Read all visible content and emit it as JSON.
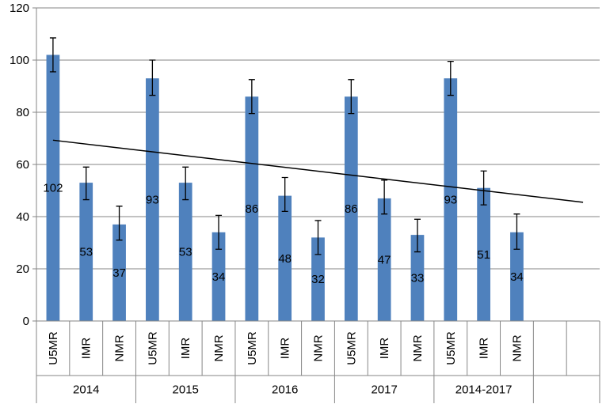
{
  "chart_data": {
    "type": "bar",
    "ylim": [
      0,
      120
    ],
    "yticks": [
      0,
      20,
      40,
      60,
      80,
      100,
      120
    ],
    "grid": "horizontal",
    "groups": [
      {
        "label": "2014",
        "categories": [
          "U5MR",
          "IMR",
          "NMR"
        ]
      },
      {
        "label": "2015",
        "categories": [
          "U5MR",
          "IMR",
          "NMR"
        ]
      },
      {
        "label": "2016",
        "categories": [
          "U5MR",
          "IMR",
          "NMR"
        ]
      },
      {
        "label": "2017",
        "categories": [
          "U5MR",
          "IMR",
          "NMR"
        ]
      },
      {
        "label": "2014-2017",
        "categories": [
          "U5MR",
          "IMR",
          "NMR"
        ]
      }
    ],
    "empty_slots_after": 2,
    "series": [
      {
        "values": [
          102,
          53,
          37,
          93,
          53,
          34,
          86,
          48,
          32,
          86,
          47,
          33,
          93,
          51,
          34
        ],
        "data_labels": [
          "102",
          "53",
          "37",
          "93",
          "53",
          "34",
          "86",
          "48",
          "32",
          "86",
          "47",
          "33",
          "93",
          "51",
          "34"
        ],
        "error_low": [
          95.5,
          46.5,
          31,
          86.5,
          46.5,
          27.5,
          79.5,
          42,
          25.5,
          79.5,
          41,
          26.5,
          86.5,
          44.5,
          27.5
        ],
        "error_high": [
          108.5,
          59,
          44,
          100,
          59,
          40.5,
          92.5,
          55,
          38.5,
          92.5,
          54,
          39,
          99.5,
          57.5,
          41
        ]
      }
    ],
    "trendline": {
      "type": "linear",
      "start_value": 69.3,
      "end_value": 45.5
    }
  }
}
